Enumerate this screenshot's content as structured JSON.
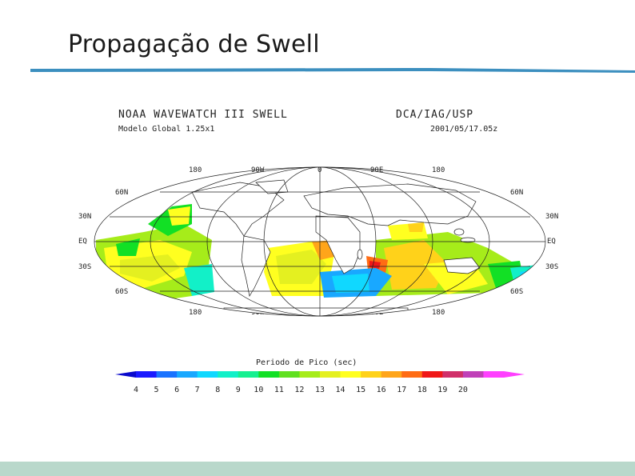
{
  "slide": {
    "title": "Propagação de Swell"
  },
  "map": {
    "header_left": "NOAA WAVEWATCH III SWELL",
    "header_right": "DCA/IAG/USP",
    "model": "Modelo Global 1.25x1",
    "datetime": "2001/05/17.05z",
    "lon_labels": [
      "180",
      "90W",
      "0",
      "90E",
      "180"
    ],
    "lat_labels_left": [
      "60N",
      "30N",
      "EQ",
      "30S",
      "60S"
    ],
    "lat_labels_right": [
      "60N",
      "30N",
      "EQ",
      "30S",
      "60S"
    ],
    "projection": "mollweide",
    "grid": true
  },
  "colorbar": {
    "title": "Periodo de Pico (sec)",
    "ticks": [
      "4",
      "5",
      "6",
      "7",
      "8",
      "9",
      "10",
      "11",
      "12",
      "13",
      "14",
      "15",
      "16",
      "17",
      "18",
      "19",
      "20"
    ],
    "colors": [
      "#1a1aff",
      "#1a73ff",
      "#19a8ff",
      "#10d8ff",
      "#12f0c8",
      "#16f090",
      "#12e025",
      "#60e020",
      "#a6ec1a",
      "#e4f020",
      "#ffff20",
      "#ffd21a",
      "#ffa51a",
      "#ff6c14",
      "#f01818",
      "#d0306a",
      "#c040b8",
      "#ff40ff"
    ]
  }
}
